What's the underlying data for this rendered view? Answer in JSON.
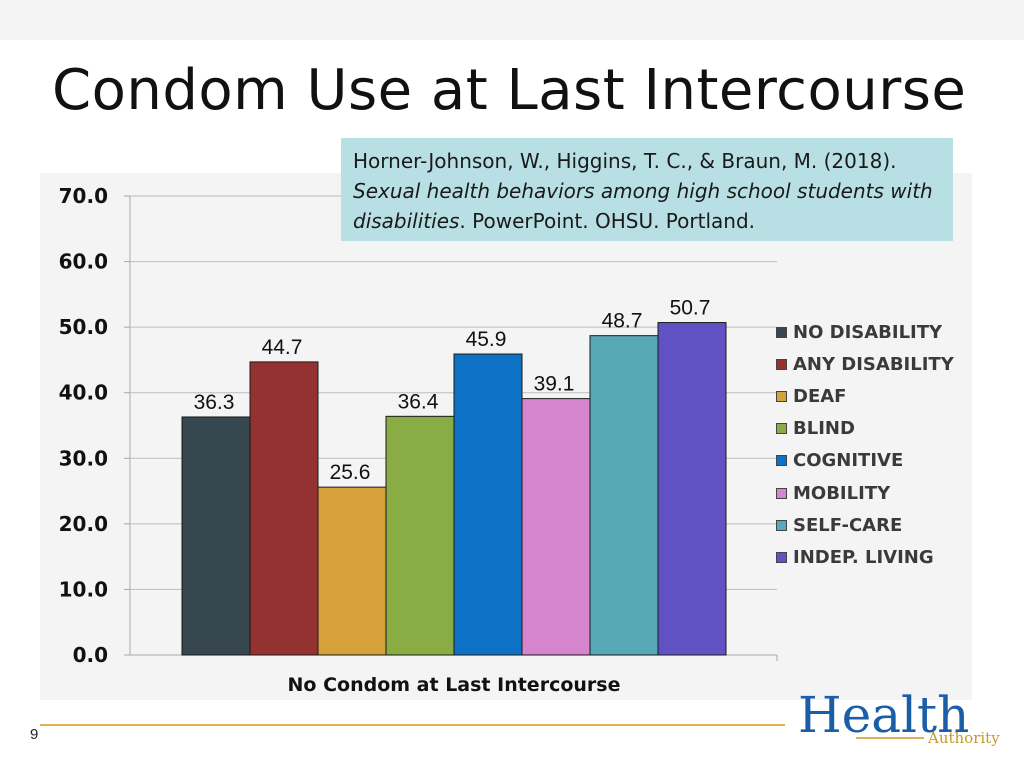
{
  "slide": {
    "title": "Condom Use at Last Intercourse",
    "page_number": "9"
  },
  "citation": {
    "authors": "Horner-Johnson, W., Higgins, T. C., & Braun, M. (2018).",
    "work_title": "Sexual health behaviors among high school students with disabilities",
    "rest": ". PowerPoint. OHSU. Portland."
  },
  "logo": {
    "main": "Health",
    "sub": "Authority"
  },
  "colors": {
    "no_disability": "#37474f",
    "any_disability": "#943232",
    "deaf": "#d6a03a",
    "blind": "#8aac44",
    "cognitive": "#0d72c5",
    "mobility": "#d585cc",
    "self_care": "#57a9b5",
    "indep_living": "#6052c3",
    "footer_line": "#e8b04a",
    "logo_blue": "#1b5ea8",
    "logo_gold": "#c79a2a"
  },
  "chart_data": {
    "type": "bar",
    "title": "Condom Use at Last Intercourse",
    "xlabel": "No Condom at Last Intercourse",
    "ylabel": "",
    "categories": [
      "No Condom at Last Intercourse"
    ],
    "ylim": [
      0,
      70
    ],
    "yticks": [
      "0.0",
      "10.0",
      "20.0",
      "30.0",
      "40.0",
      "50.0",
      "60.0",
      "70.0"
    ],
    "grid": true,
    "legend_position": "right",
    "series": [
      {
        "name": "NO DISABILITY",
        "values": [
          36.3
        ],
        "label": "36.3",
        "color": "#37474f"
      },
      {
        "name": "ANY DISABILITY",
        "values": [
          44.7
        ],
        "label": "44.7",
        "color": "#943232"
      },
      {
        "name": "DEAF",
        "values": [
          25.6
        ],
        "label": "25.6",
        "color": "#d6a03a"
      },
      {
        "name": "BLIND",
        "values": [
          36.4
        ],
        "label": "36.4",
        "color": "#8aac44"
      },
      {
        "name": "COGNITIVE",
        "values": [
          45.9
        ],
        "label": "45.9",
        "color": "#0d72c5"
      },
      {
        "name": "MOBILITY",
        "values": [
          39.1
        ],
        "label": "39.1",
        "color": "#d585cc"
      },
      {
        "name": "SELF-CARE",
        "values": [
          48.7
        ],
        "label": "48.7",
        "color": "#57a9b5"
      },
      {
        "name": "INDEP. LIVING",
        "values": [
          50.7
        ],
        "label": "50.7",
        "color": "#6052c3"
      }
    ]
  }
}
